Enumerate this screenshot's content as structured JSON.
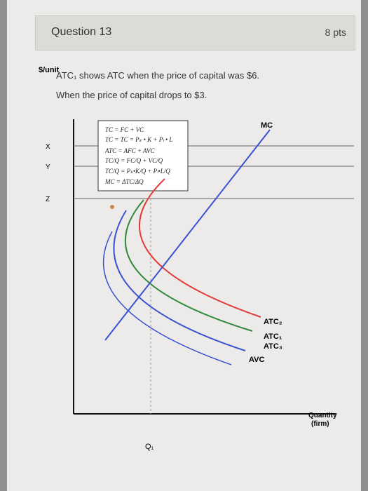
{
  "header": {
    "title": "Question 13",
    "points": "8 pts"
  },
  "question": {
    "lines": [
      "ATC₁ shows ATC when the price of capital was $6.",
      "When the price of capital drops to $3."
    ]
  },
  "diagram": {
    "y_axis_label": "$/unit",
    "x_axis_label": [
      "Quantity",
      "(firm)"
    ],
    "q_label": "Q₁",
    "levels": [
      "X",
      "Y",
      "Z"
    ],
    "curves": {
      "mc": "MC",
      "atc2": "ATC₂",
      "atc1": "ATC₁",
      "atc3": "ATC₃",
      "avc": "AVC"
    },
    "formulas": [
      "TC = FC + VC",
      "TC = TC = Pₖ • K + Pₗ • L",
      "ATC = AFC + AVC",
      "TC/Q = FC/Q + VC/Q",
      "TC/Q = Pₖ•K/Q + Pₗ•L/Q",
      "MC = ΔTC/ΔQ"
    ]
  }
}
